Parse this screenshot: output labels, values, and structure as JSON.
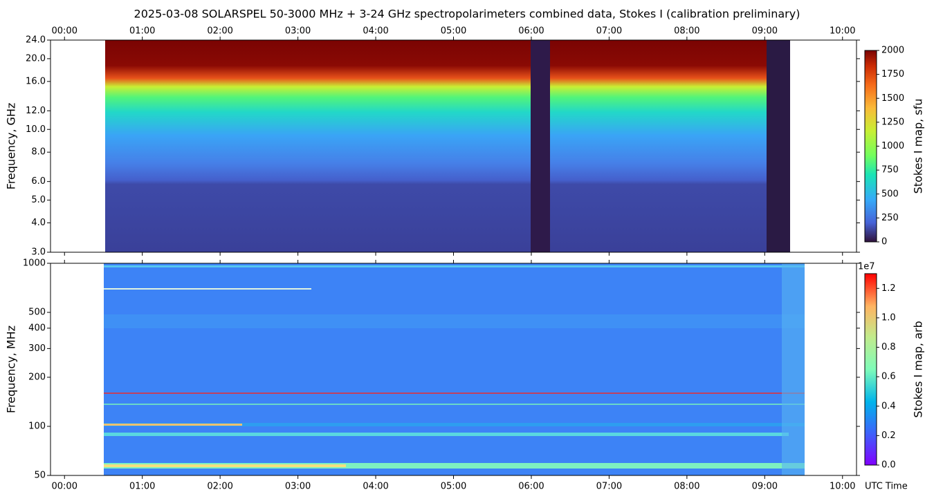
{
  "chart_data": [
    {
      "type": "heatmap",
      "title": "2025-03-08  SOLARSPEL  50-3000 MHz  +  3-24 GHz  spectropolarimeters combined data,  Stokes I  (calibration preliminary)",
      "ylabel": "Frequency, GHz",
      "ylog": true,
      "ylim": [
        3,
        24
      ],
      "yticks": [
        {
          "value": 3,
          "label": "3.0"
        },
        {
          "value": 4,
          "label": "4.0"
        },
        {
          "value": 5,
          "label": "5.0"
        },
        {
          "value": 6,
          "label": "6.0"
        },
        {
          "value": 8,
          "label": "8.0"
        },
        {
          "value": 10,
          "label": "10.0"
        },
        {
          "value": 12,
          "label": "12.0"
        },
        {
          "value": 16,
          "label": "16.0"
        },
        {
          "value": 20,
          "label": "20.0"
        },
        {
          "value": 24,
          "label": "24.0"
        }
      ],
      "xlim": [
        -0.18,
        10.18
      ],
      "xtick_labels": "top",
      "xticks": [
        {
          "value": 0,
          "label": "00:00"
        },
        {
          "value": 1,
          "label": "01:00"
        },
        {
          "value": 2,
          "label": "02:00"
        },
        {
          "value": 3,
          "label": "03:00"
        },
        {
          "value": 4,
          "label": "04:00"
        },
        {
          "value": 5,
          "label": "05:00"
        },
        {
          "value": 6,
          "label": "06:00"
        },
        {
          "value": 7,
          "label": "07:00"
        },
        {
          "value": 8,
          "label": "08:00"
        },
        {
          "value": 9,
          "label": "09:00"
        },
        {
          "value": 10,
          "label": "10:00"
        }
      ],
      "colorbar": {
        "label": "Stokes I map, sfu",
        "colormap": "turbo",
        "lim": [
          0,
          2000
        ],
        "ticks": [
          0,
          250,
          500,
          750,
          1000,
          1250,
          1500,
          1750,
          2000
        ]
      }
    },
    {
      "type": "heatmap",
      "ylabel": "Frequency, MHz",
      "xlabel": "UTC Time",
      "ylog": true,
      "ylim": [
        50,
        1000
      ],
      "yticks": [
        50,
        100,
        200,
        300,
        400,
        500,
        1000
      ],
      "xlim": [
        -0.18,
        10.18
      ],
      "xtick_labels": "bottom",
      "xticks": [
        {
          "value": 0,
          "label": "00:00"
        },
        {
          "value": 1,
          "label": "01:00"
        },
        {
          "value": 2,
          "label": "02:00"
        },
        {
          "value": 3,
          "label": "03:00"
        },
        {
          "value": 4,
          "label": "04:00"
        },
        {
          "value": 5,
          "label": "05:00"
        },
        {
          "value": 6,
          "label": "06:00"
        },
        {
          "value": 7,
          "label": "07:00"
        },
        {
          "value": 8,
          "label": "08:00"
        },
        {
          "value": 9,
          "label": "09:00"
        },
        {
          "value": 10,
          "label": "10:00"
        }
      ],
      "colorbar": {
        "label": "Stokes I map, arb",
        "colormap": "rainbow",
        "offset_text": "1e7",
        "lim": [
          0,
          1.3
        ],
        "ticks": [
          {
            "value": 0,
            "label": "0.0"
          },
          {
            "value": 0.2,
            "label": "0.2"
          },
          {
            "value": 0.4,
            "label": "0.4"
          },
          {
            "value": 0.6,
            "label": "0.6"
          },
          {
            "value": 0.8,
            "label": "0.8"
          },
          {
            "value": 1,
            "label": "1.0"
          },
          {
            "value": 1.2,
            "label": "1.2"
          }
        ]
      }
    }
  ]
}
